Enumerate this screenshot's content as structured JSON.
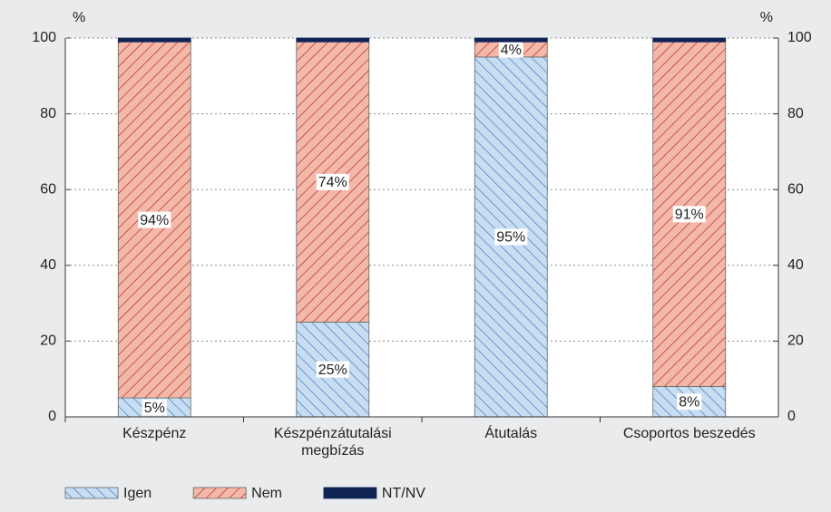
{
  "chart_data": {
    "type": "stacked_bar",
    "y_label": "%",
    "y2_label": "%",
    "categories": [
      "Készpénz",
      "Készpénzátutalási megbízás",
      "Átutalás",
      "Csoportos beszedés"
    ],
    "series": [
      {
        "name": "Igen",
        "color": "#c7def2",
        "hatch_color": "#4a78b8",
        "pattern": "backslash",
        "values": [
          5,
          25,
          95,
          8
        ],
        "value_labels": [
          "5%",
          "25%",
          "95%",
          "8%"
        ]
      },
      {
        "name": "Nem",
        "color": "#f2b9a9",
        "hatch_color": "#c0262a",
        "pattern": "slash",
        "values": [
          94,
          74,
          4,
          91
        ],
        "value_labels": [
          "94%",
          "74%",
          "4%",
          "91%"
        ]
      },
      {
        "name": "NT/NV",
        "color": "#0f2454",
        "pattern": "solid",
        "values": [
          1,
          1,
          1,
          1
        ]
      }
    ],
    "ylim": [
      0,
      100
    ],
    "yticks": [
      0,
      20,
      40,
      60,
      80,
      100
    ],
    "y2lim": [
      0,
      100
    ],
    "y2ticks": [
      0,
      20,
      40,
      60,
      80,
      100
    ],
    "grid": true,
    "legend": "bottom"
  }
}
